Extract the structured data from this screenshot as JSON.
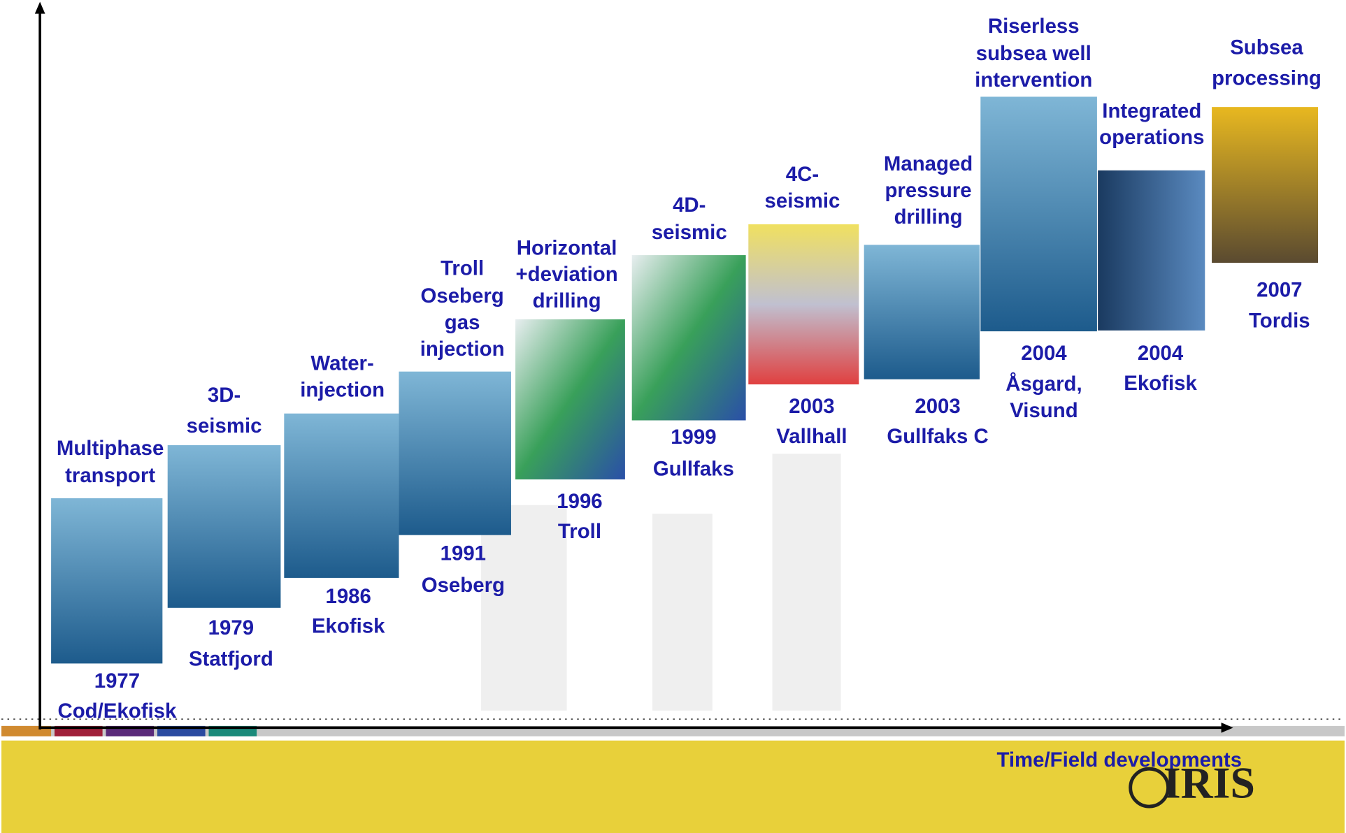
{
  "items": [
    {
      "label": [
        "Multiphase",
        "transport"
      ],
      "caption": [
        "1977",
        "Cod/Ekofisk"
      ]
    },
    {
      "label": [
        "3D-",
        "seismic"
      ],
      "caption": [
        "1979",
        "Statfjord"
      ]
    },
    {
      "label": [
        "Water-",
        "injection"
      ],
      "caption": [
        "1986",
        "Ekofisk"
      ]
    },
    {
      "label": [
        "Troll",
        "Oseberg",
        "gas",
        "injection"
      ],
      "caption": [
        "1991",
        "Oseberg"
      ]
    },
    {
      "label": [
        "Horizontal",
        "+deviation",
        "drilling"
      ],
      "caption": [
        "1996",
        "Troll"
      ]
    },
    {
      "label": [
        "4D-",
        "seismic"
      ],
      "caption": [
        "1999",
        "Gullfaks"
      ]
    },
    {
      "label": [
        "4C-",
        "seismic"
      ],
      "caption": [
        "2003",
        "Vallhall"
      ]
    },
    {
      "label": [
        "Managed",
        "pressure",
        "drilling"
      ],
      "caption": [
        "2003",
        "Gullfaks C"
      ]
    },
    {
      "label": [
        "Riserless",
        "subsea well",
        "intervention"
      ],
      "caption": [
        "2004",
        "Åsgard,",
        "Visund"
      ]
    },
    {
      "label": [
        "Integrated",
        "operations"
      ],
      "caption": [
        "2004",
        "Ekofisk"
      ]
    },
    {
      "label": [
        "Subsea",
        "processing"
      ],
      "caption": [
        "2007",
        "Tordis"
      ]
    }
  ],
  "axis_label": "Time/Field developments",
  "logo": "IRIS"
}
